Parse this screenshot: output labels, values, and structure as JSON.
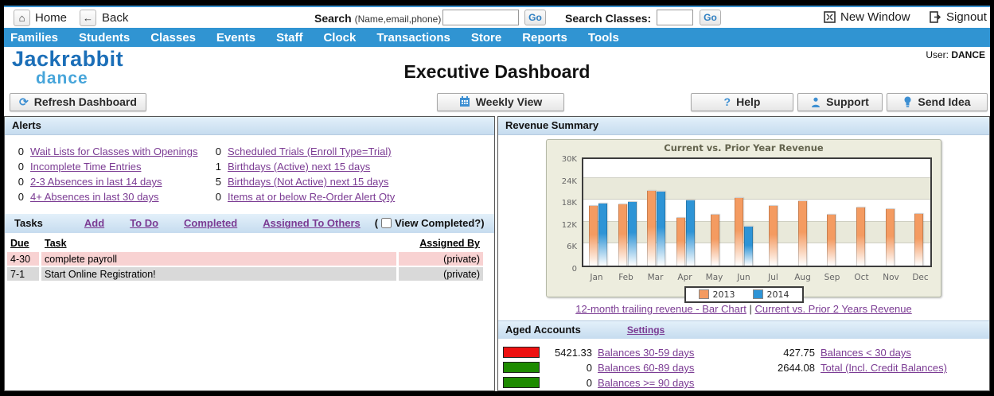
{
  "topbar": {
    "home": "Home",
    "back": "Back",
    "search_label": "Search",
    "search_hint": "(Name,email,phone)",
    "search_value": "",
    "go": "Go",
    "search_classes_label": "Search Classes:",
    "search_classes_value": "",
    "go2": "Go",
    "new_window": "New Window",
    "signout": "Signout"
  },
  "nav": {
    "items": [
      {
        "label": "Families"
      },
      {
        "label": "Students"
      },
      {
        "label": "Classes"
      },
      {
        "label": "Events"
      },
      {
        "label": "Staff"
      },
      {
        "label": "Clock"
      },
      {
        "label": "Transactions"
      },
      {
        "label": "Store"
      },
      {
        "label": "Reports"
      },
      {
        "label": "Tools"
      }
    ]
  },
  "header": {
    "logo_line1": "Jackrabbit",
    "logo_line2": "dance",
    "user_label": "User:",
    "user_name": "DANCE",
    "title": "Executive Dashboard"
  },
  "toolbar": {
    "refresh": "Refresh Dashboard",
    "weekly_view": "Weekly View",
    "help": "Help",
    "support": "Support",
    "send_idea": "Send Idea"
  },
  "alerts": {
    "title": "Alerts",
    "col1": [
      {
        "count": "0",
        "label": "Wait Lists for Classes with Openings"
      },
      {
        "count": "0",
        "label": "Incomplete Time Entries"
      },
      {
        "count": "0",
        "label": "2-3 Absences in last 14 days"
      },
      {
        "count": "0",
        "label": "4+ Absences in last 30 days"
      }
    ],
    "col2": [
      {
        "count": "0",
        "label": "Scheduled Trials (Enroll Type=Trial)"
      },
      {
        "count": "1",
        "label": "Birthdays (Active) next 15 days"
      },
      {
        "count": "5",
        "label": "Birthdays (Not Active) next 15 days"
      },
      {
        "count": "0",
        "label": "Items at or below Re-Order Alert Qty"
      }
    ]
  },
  "tasks": {
    "title": "Tasks",
    "links": [
      {
        "label": "Add"
      },
      {
        "label": "To Do"
      },
      {
        "label": "Completed"
      },
      {
        "label": "Assigned To Others"
      }
    ],
    "paren_open": "(",
    "view_completed_label": "View Completed?)",
    "columns": [
      "Due",
      "Task",
      "Assigned By"
    ],
    "rows": [
      {
        "due": "4-30",
        "task": "complete payroll",
        "assigned_by": "(private)"
      },
      {
        "due": "7-1",
        "task": "Start Online Registration!",
        "assigned_by": "(private)"
      }
    ]
  },
  "revenue": {
    "title": "Revenue Summary",
    "link1": "12-month trailing revenue - Bar Chart",
    "separator": "|",
    "link2": "Current vs. Prior 2 Years Revenue"
  },
  "chart_data": {
    "type": "bar",
    "title": "Current vs. Prior Year Revenue",
    "categories": [
      "Jan",
      "Feb",
      "Mar",
      "Apr",
      "May",
      "Jun",
      "Jul",
      "Aug",
      "Sep",
      "Oct",
      "Nov",
      "Dec"
    ],
    "series": [
      {
        "name": "2013",
        "color": "#f49b61",
        "values": [
          16500,
          16900,
          20700,
          13300,
          14100,
          18800,
          16600,
          17800,
          14100,
          16000,
          15700,
          14400
        ]
      },
      {
        "name": "2014",
        "color": "#2e94d6",
        "values": [
          17100,
          17500,
          20500,
          18000,
          null,
          10900,
          null,
          null,
          null,
          null,
          null,
          null
        ]
      }
    ],
    "ylim": [
      0,
      30000
    ],
    "yticks": [
      0,
      6000,
      12000,
      18000,
      24000,
      30000
    ],
    "ytick_labels": [
      "0",
      "6K",
      "12K",
      "18K",
      "24K",
      "30K"
    ],
    "legend_position": "bottom",
    "grid": true
  },
  "aged": {
    "title": "Aged Accounts",
    "settings": "Settings",
    "left_rows": [
      {
        "swatch": "#ee1111",
        "amount": "5421.33",
        "label": "Balances 30-59 days"
      },
      {
        "swatch": "#1e8b00",
        "amount": "0",
        "label": "Balances 60-89 days"
      },
      {
        "swatch": "#1e8b00",
        "amount": "0",
        "label": "Balances >= 90 days"
      }
    ],
    "right_rows": [
      {
        "amount": "427.75",
        "label": "Balances < 30 days"
      },
      {
        "amount": "2644.08",
        "label": "Total (Incl. Credit Balances)"
      }
    ]
  },
  "colors": {
    "nav_blue": "#3094d2",
    "link_purple": "#7b3b93",
    "bar_2013": "#f49b61",
    "bar_2014": "#2e94d6",
    "alert_red": "#ee1111",
    "ok_green": "#1e8b00",
    "task_row_pink": "#f8d2d2",
    "task_row_gray": "#d9d9d9"
  }
}
